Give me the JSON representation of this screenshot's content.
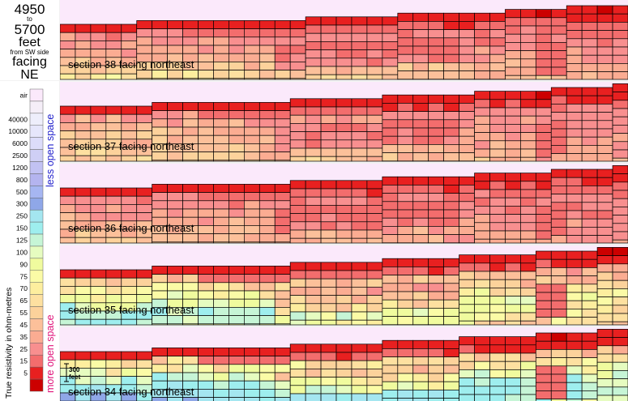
{
  "header": {
    "from_depth": "4950",
    "to_word": "to",
    "to_depth": "5700",
    "unit": "feet",
    "side_note": "from SW side",
    "facing_word": "facing",
    "facing_dir": "NE"
  },
  "legend": {
    "title": "True resistivity in ohm-metres",
    "upper_note": "less open space",
    "lower_note": "more open space",
    "levels": [
      {
        "label": "air",
        "color": "#fbe9fb"
      },
      {
        "label": "",
        "color": "#f5eef8"
      },
      {
        "label": "40000",
        "color": "#eeeefb"
      },
      {
        "label": "10000",
        "color": "#e6e6fb"
      },
      {
        "label": "6000",
        "color": "#dcdcfa"
      },
      {
        "label": "2500",
        "color": "#cfcff5"
      },
      {
        "label": "1200",
        "color": "#c2c2f3"
      },
      {
        "label": "800",
        "color": "#b4b4ef"
      },
      {
        "label": "500",
        "color": "#a6b6f2"
      },
      {
        "label": "300",
        "color": "#8fa7e8"
      },
      {
        "label": "250",
        "color": "#a4e6f0"
      },
      {
        "label": "150",
        "color": "#9eeeee"
      },
      {
        "label": "125",
        "color": "#c6f5d6"
      },
      {
        "label": "100",
        "color": "#e6fcc0"
      },
      {
        "label": "90",
        "color": "#f0fb9e"
      },
      {
        "label": "75",
        "color": "#fbfba6"
      },
      {
        "label": "70",
        "color": "#fdee9e"
      },
      {
        "label": "65",
        "color": "#fde0a0"
      },
      {
        "label": "55",
        "color": "#fcd29b"
      },
      {
        "label": "45",
        "color": "#fcc09a"
      },
      {
        "label": "35",
        "color": "#fbac92"
      },
      {
        "label": "25",
        "color": "#f88f8f"
      },
      {
        "label": "15",
        "color": "#f36d6d"
      },
      {
        "label": "5",
        "color": "#e82020"
      },
      {
        "label": "",
        "color": "#cc0000"
      }
    ]
  },
  "scale_bar": {
    "label": "300 feet"
  },
  "chart_data": {
    "type": "heatmap",
    "value_unit": "ohm-metres",
    "sections": [
      {
        "label": "section 38 facing northeast",
        "surface_step": [
          0,
          0,
          0,
          0,
          0,
          1,
          1,
          1,
          1,
          1,
          1,
          1,
          1,
          1,
          1,
          1,
          2,
          2,
          2,
          2,
          2,
          2,
          3,
          3,
          3,
          3,
          3,
          3,
          3,
          4,
          4,
          4,
          4,
          5,
          5,
          5,
          5
        ],
        "profile": [
          [
            1,
            25
          ],
          [
            3,
            35
          ],
          [
            5,
            55
          ],
          [
            7,
            75
          ],
          [
            9,
            90
          ],
          [
            20,
            75
          ]
        ]
      },
      {
        "label": "section 37 facing northeast",
        "surface_step": [
          0,
          0,
          0,
          0,
          0,
          0,
          1,
          1,
          1,
          1,
          1,
          1,
          1,
          1,
          1,
          2,
          2,
          2,
          2,
          2,
          2,
          3,
          3,
          3,
          3,
          3,
          3,
          4,
          4,
          4,
          4,
          4,
          5,
          5,
          5,
          5,
          6
        ],
        "profile": [
          [
            1,
            35
          ],
          [
            3,
            45
          ],
          [
            5,
            55
          ],
          [
            7,
            65
          ],
          [
            9,
            75
          ],
          [
            20,
            70
          ]
        ]
      },
      {
        "label": "section 36 facing northeast",
        "surface_step": [
          0,
          0,
          0,
          0,
          0,
          0,
          1,
          1,
          1,
          1,
          1,
          1,
          1,
          1,
          1,
          2,
          2,
          2,
          2,
          2,
          2,
          3,
          3,
          3,
          3,
          3,
          3,
          4,
          4,
          4,
          4,
          4,
          5,
          5,
          5,
          5,
          6
        ],
        "profile": [
          [
            1,
            25
          ],
          [
            3,
            35
          ],
          [
            5,
            45
          ],
          [
            7,
            55
          ],
          [
            9,
            65
          ],
          [
            20,
            70
          ]
        ]
      },
      {
        "label": "section 35 facing northeast",
        "surface_step": [
          0,
          0,
          0,
          0,
          0,
          0,
          1,
          1,
          1,
          1,
          1,
          1,
          1,
          1,
          1,
          2,
          2,
          2,
          2,
          2,
          2,
          3,
          3,
          3,
          3,
          3,
          4,
          4,
          4,
          4,
          4,
          5,
          5,
          5,
          5,
          6,
          6
        ],
        "profile": [
          [
            1,
            55
          ],
          [
            3,
            90
          ],
          [
            5,
            150
          ],
          [
            7,
            125
          ],
          [
            9,
            100
          ],
          [
            20,
            75
          ]
        ]
      },
      {
        "label": "section 34 facing northeast",
        "surface_step": [
          0,
          0,
          0,
          0,
          0,
          0,
          1,
          1,
          1,
          1,
          1,
          1,
          1,
          1,
          1,
          2,
          2,
          2,
          2,
          2,
          2,
          3,
          3,
          3,
          3,
          3,
          4,
          4,
          4,
          4,
          4,
          5,
          5,
          5,
          5,
          6,
          6
        ],
        "profile": [
          [
            1,
            65
          ],
          [
            3,
            125
          ],
          [
            5,
            250
          ],
          [
            7,
            300
          ],
          [
            9,
            150
          ],
          [
            20,
            90
          ]
        ]
      }
    ]
  }
}
